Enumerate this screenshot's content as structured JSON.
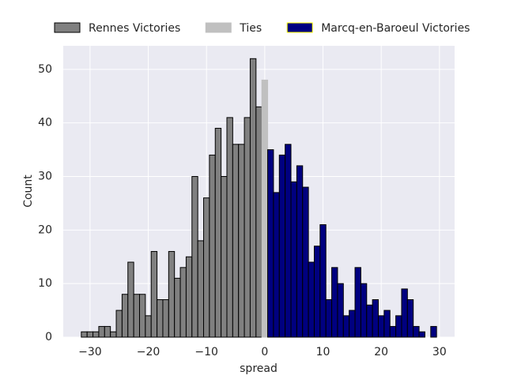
{
  "chart_data": {
    "type": "histogram",
    "xlabel": "spread",
    "ylabel": "Count",
    "xlim": [
      -34.6,
      32.6
    ],
    "ylim": [
      0,
      54.4
    ],
    "xticks": [
      {
        "value": -30,
        "label": "−30"
      },
      {
        "value": -20,
        "label": "−20"
      },
      {
        "value": -10,
        "label": "−10"
      },
      0,
      10,
      20,
      30
    ],
    "yticks": [
      0,
      10,
      20,
      30,
      40,
      50
    ],
    "grid": true,
    "legend": "top",
    "series": [
      {
        "name": "Rennes Victories",
        "color": "#808080",
        "edgecolor": "#000000",
        "bins": [
          -31.5,
          -30.5,
          -29.5,
          -28.5,
          -27.5,
          -26.5,
          -25.5,
          -24.5,
          -23.5,
          -22.5,
          -21.5,
          -20.5,
          -19.5,
          -18.5,
          -17.5,
          -16.5,
          -15.5,
          -14.5,
          -13.5,
          -12.5,
          -11.5,
          -10.5,
          -9.5,
          -8.5,
          -7.5,
          -6.5,
          -5.5,
          -4.5,
          -3.5,
          -2.5,
          -1.5,
          -0.5
        ],
        "values": [
          1,
          1,
          1,
          2,
          2,
          1,
          5,
          8,
          14,
          8,
          8,
          4,
          16,
          7,
          7,
          16,
          11,
          13,
          15,
          30,
          18,
          26,
          34,
          39,
          30,
          41,
          36,
          36,
          41,
          52,
          43
        ]
      },
      {
        "name": "Ties",
        "color": "#c0c0c0",
        "edgecolor": "#c0c0c0",
        "bins": [
          -0.5,
          0.5
        ],
        "values": [
          48
        ]
      },
      {
        "name": "Marcq-en-Baroeul Victories",
        "color": "#000080",
        "edgecolor": "#000000",
        "bins": [
          0.5,
          1.5,
          2.5,
          3.5,
          4.5,
          5.5,
          6.5,
          7.5,
          8.5,
          9.5,
          10.5,
          11.5,
          12.5,
          13.5,
          14.5,
          15.5,
          16.5,
          17.5,
          18.5,
          19.5,
          20.5,
          21.5,
          22.5,
          23.5,
          24.5,
          25.5,
          26.5,
          27.5,
          28.5,
          29.5
        ],
        "values": [
          35,
          27,
          34,
          36,
          29,
          32,
          28,
          14,
          17,
          21,
          7,
          13,
          10,
          4,
          5,
          13,
          10,
          6,
          7,
          4,
          5,
          2,
          4,
          9,
          7,
          2,
          1,
          0,
          2
        ]
      }
    ]
  }
}
